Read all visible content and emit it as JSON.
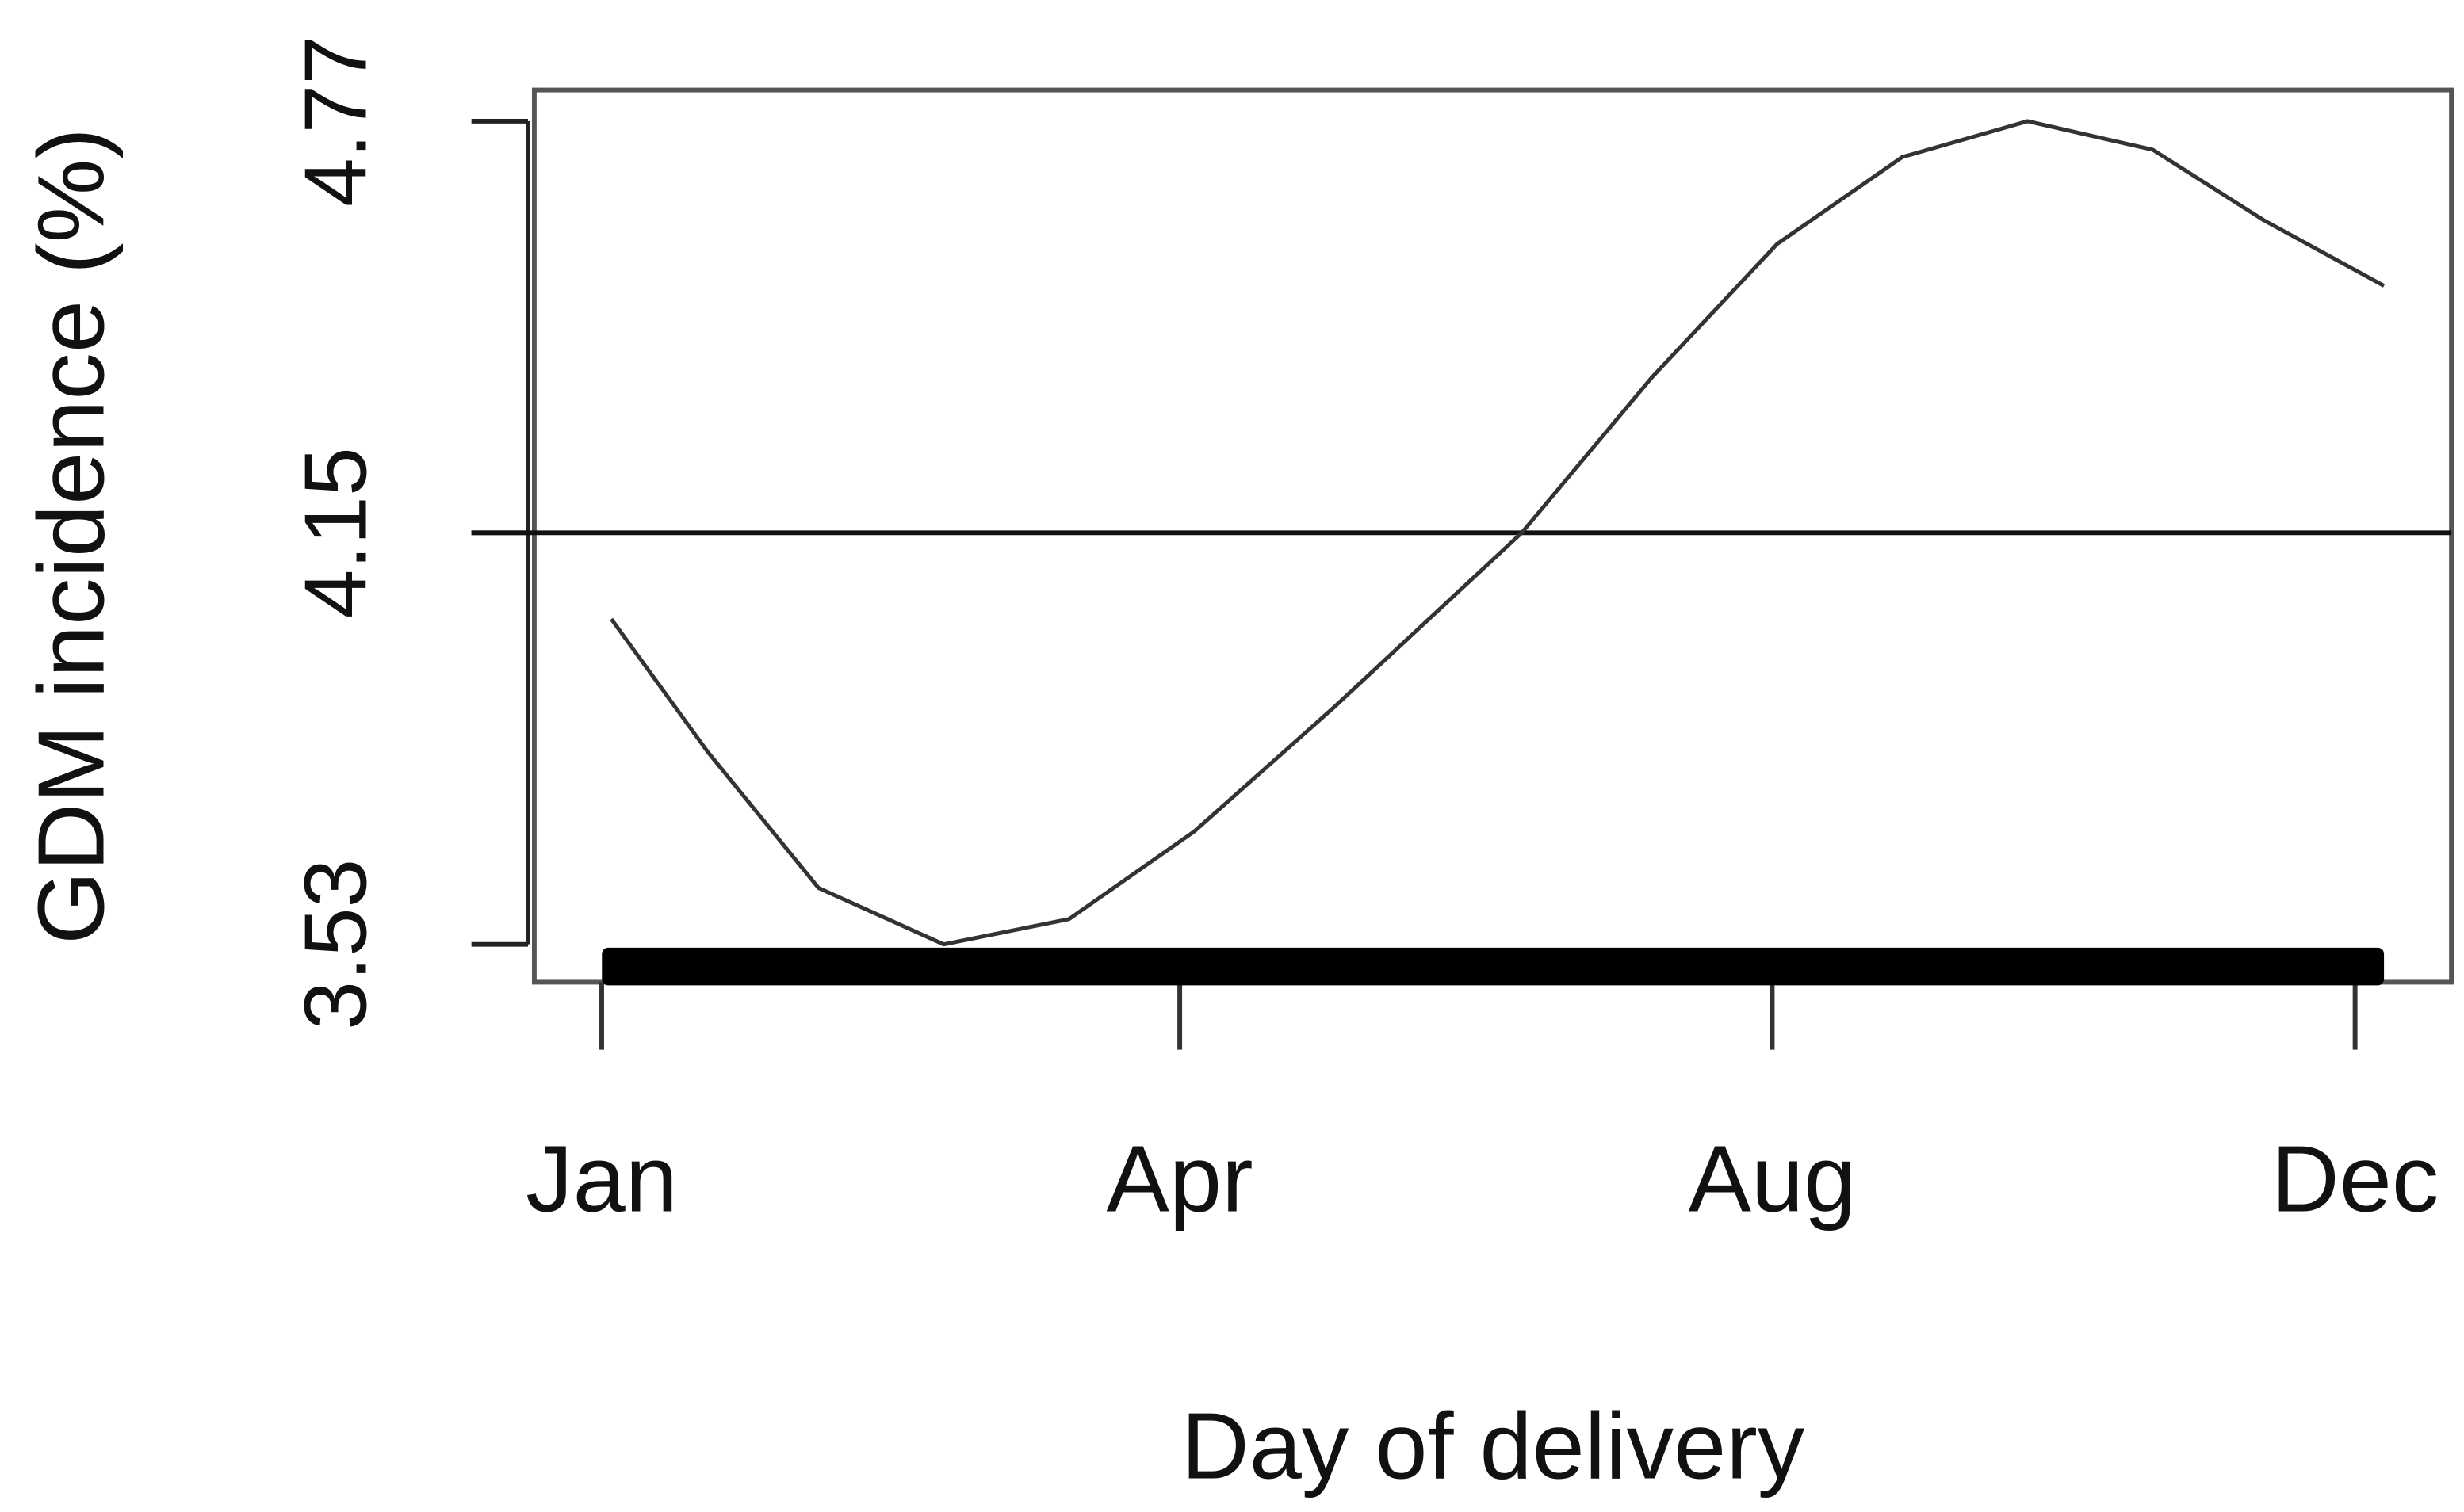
{
  "chart_data": {
    "type": "line",
    "x_label": "Day of delivery",
    "y_label": "GDM incidence (%)",
    "x": [
      3,
      23,
      46,
      72,
      98,
      124,
      153,
      192,
      219,
      245,
      271,
      297,
      323,
      346,
      371
    ],
    "series": [
      {
        "color": "#333333",
        "values": [
          4.02,
          3.82,
          3.615,
          3.53,
          3.568,
          3.7,
          3.887,
          4.15,
          4.384,
          4.585,
          4.716,
          4.77,
          4.727,
          4.621,
          4.522
        ]
      }
    ],
    "hline": 4.15,
    "xlim": [
      -13,
      385
    ],
    "xticks": [
      {
        "value": 1,
        "label": "Jan"
      },
      {
        "value": 121,
        "label": "Apr"
      },
      {
        "value": 244,
        "label": "Aug"
      },
      {
        "value": 365,
        "label": "Dec"
      }
    ],
    "ylim": [
      3.473,
      4.817
    ],
    "yticks": [
      3.53,
      4.15,
      4.77
    ],
    "rug": true
  }
}
